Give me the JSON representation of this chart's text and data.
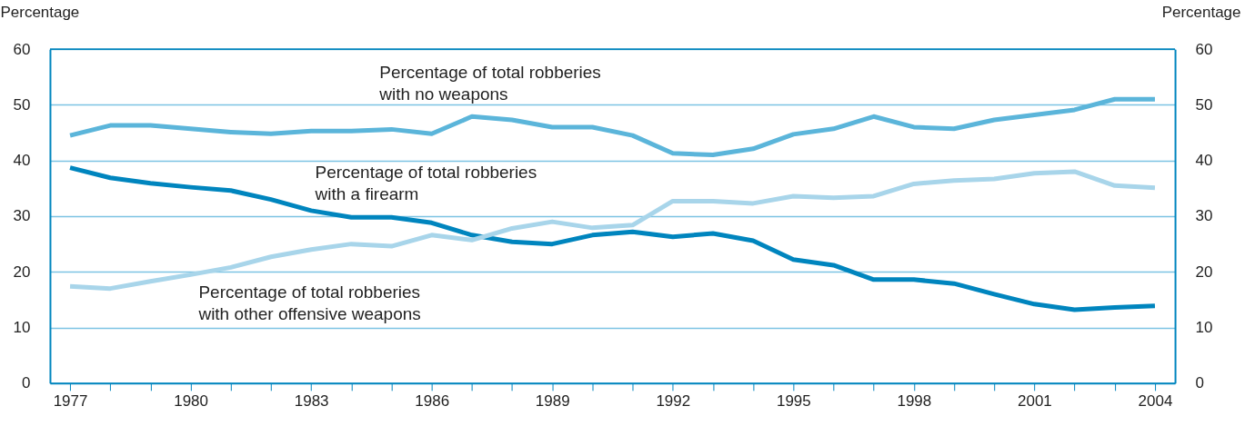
{
  "chart_data": {
    "type": "line",
    "ylabel": "Percentage",
    "y2label": "Percentage",
    "x": [
      1977,
      1978,
      1979,
      1980,
      1981,
      1982,
      1983,
      1984,
      1985,
      1986,
      1987,
      1988,
      1989,
      1990,
      1991,
      1992,
      1993,
      1994,
      1995,
      1996,
      1997,
      1998,
      1999,
      2000,
      2001,
      2002,
      2003,
      2004
    ],
    "series": [
      {
        "name": "Percentage of total robberies\nwith no weapons",
        "color": "#5bb5da",
        "values": [
          44.5,
          46.3,
          46.3,
          45.7,
          45.1,
          44.8,
          45.3,
          45.3,
          45.6,
          44.8,
          47.9,
          47.3,
          46.0,
          46.0,
          44.5,
          41.3,
          41.0,
          42.1,
          44.7,
          45.7,
          47.9,
          46.0,
          45.7,
          47.3,
          48.2,
          49.1,
          51.0,
          51.0
        ]
      },
      {
        "name": "Percentage of total robberies\nwith a firearm",
        "color": "#0085be",
        "values": [
          38.7,
          36.9,
          35.9,
          35.2,
          34.6,
          33.0,
          31.0,
          29.8,
          29.8,
          28.8,
          26.6,
          25.4,
          25.0,
          26.6,
          27.2,
          26.3,
          26.9,
          25.6,
          22.2,
          21.2,
          18.6,
          18.6,
          17.9,
          16.0,
          14.2,
          13.2,
          13.6,
          13.9
        ]
      },
      {
        "name": "Percentage of total robberies\nwith other offensive weapons",
        "color": "#a8d5ea",
        "values": [
          17.4,
          17.0,
          18.3,
          19.5,
          20.8,
          22.7,
          24.0,
          25.0,
          24.6,
          26.6,
          25.7,
          27.8,
          29.0,
          27.9,
          28.4,
          32.7,
          32.7,
          32.3,
          33.6,
          33.3,
          33.6,
          35.8,
          36.4,
          36.7,
          37.7,
          38.0,
          35.5,
          35.1
        ]
      }
    ],
    "xlim": [
      1976.5,
      2004.5
    ],
    "xticks": [
      1977,
      {
        "value": 1978,
        "label": null
      },
      {
        "value": 1979,
        "label": null
      },
      1980,
      {
        "value": 1981,
        "label": null
      },
      {
        "value": 1982,
        "label": null
      },
      1983,
      {
        "value": 1984,
        "label": null
      },
      {
        "value": 1985,
        "label": null
      },
      1986,
      {
        "value": 1987,
        "label": null
      },
      {
        "value": 1988,
        "label": null
      },
      1989,
      {
        "value": 1990,
        "label": null
      },
      {
        "value": 1991,
        "label": null
      },
      1992,
      {
        "value": 1993,
        "label": null
      },
      {
        "value": 1994,
        "label": null
      },
      1995,
      {
        "value": 1996,
        "label": null
      },
      {
        "value": 1997,
        "label": null
      },
      1998,
      {
        "value": 1999,
        "label": null
      },
      {
        "value": 2000,
        "label": null
      },
      2001,
      {
        "value": 2002,
        "label": null
      },
      {
        "value": 2003,
        "label": null
      },
      2004
    ],
    "ylim": [
      0,
      60
    ],
    "yticks": [
      0,
      10,
      20,
      30,
      40,
      50,
      60
    ],
    "y2lim": [
      0,
      60
    ],
    "y2ticks": [
      0,
      10,
      20,
      30,
      40,
      50,
      60
    ],
    "grid": "y",
    "marker": "none",
    "line_style": "solid"
  }
}
